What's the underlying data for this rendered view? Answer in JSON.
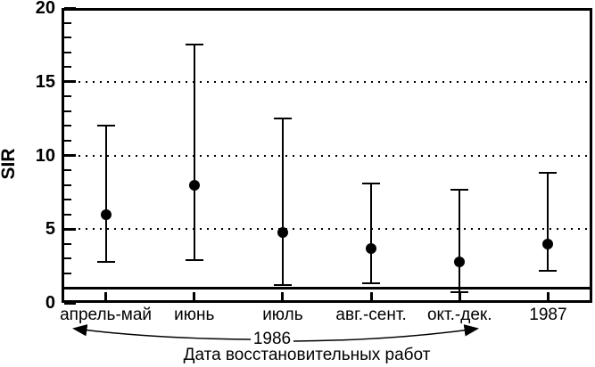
{
  "chart_data": {
    "type": "scatter",
    "subtype": "points-with-error-bars",
    "title": "",
    "ylabel": "SIR",
    "xlabel": "Дата восстановительных работ",
    "ylim": [
      0,
      20
    ],
    "yticks": [
      "0",
      "5",
      "10",
      "15",
      "20"
    ],
    "ytick_values": [
      0,
      5,
      10,
      15,
      20
    ],
    "minor_tick_step": 1,
    "gridlines_y": [
      5,
      10,
      15
    ],
    "grid_style": "dotted",
    "reference_line_y": 1,
    "categories": [
      "апрель-май",
      "июнь",
      "июль",
      "авг.-сент.",
      "окт.-дек.",
      "1987"
    ],
    "series": [
      {
        "name": "SIR",
        "values": [
          6.0,
          8.0,
          4.8,
          3.7,
          2.8,
          4.0
        ],
        "ci_low": [
          2.8,
          2.9,
          1.2,
          1.3,
          0.7,
          2.2
        ],
        "ci_high": [
          12.0,
          17.5,
          12.5,
          8.1,
          7.7,
          8.8
        ]
      }
    ],
    "annotation": {
      "year_label": "1986",
      "spans_categories_from": "апрель-май",
      "spans_categories_to": "окт.-дек."
    },
    "legend": "none",
    "colors": {
      "foreground": "#000000",
      "background": "#ffffff"
    }
  }
}
